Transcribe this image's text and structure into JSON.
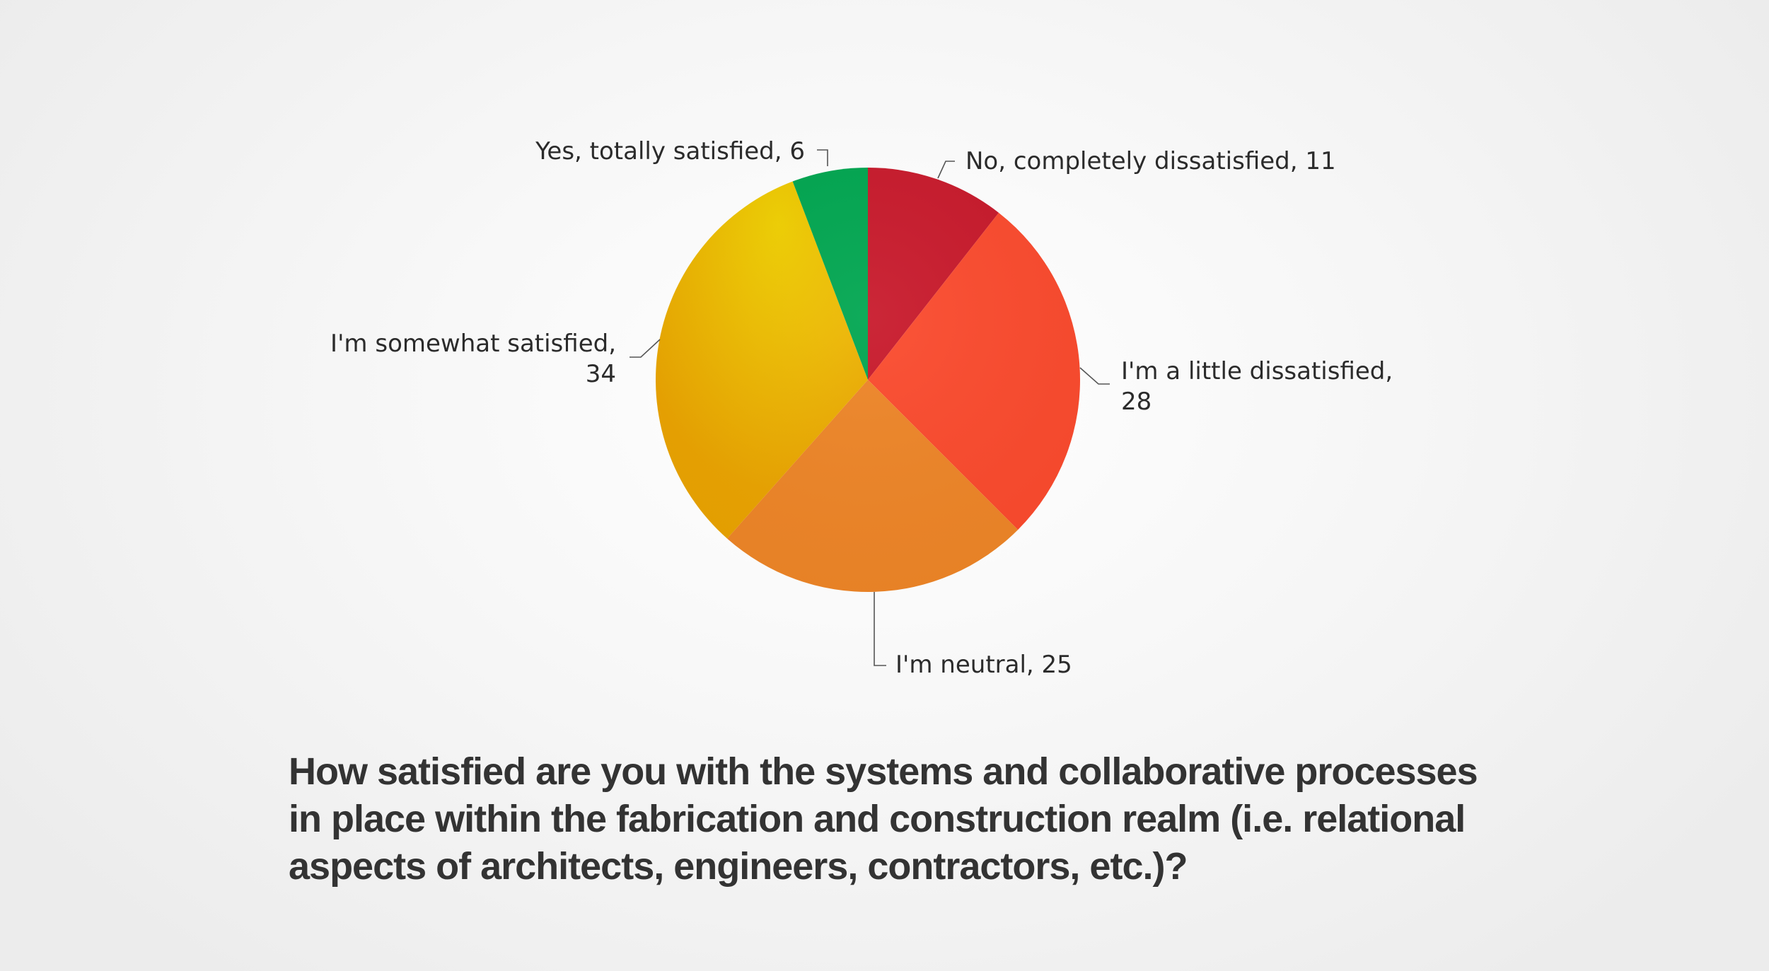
{
  "chart_data": {
    "type": "pie",
    "title": "How satisfied are you with the systems and collaborative processes in place within the fabrication and construction realm (i.e. relational aspects of architects, engineers, contractors, etc.)?",
    "slices": [
      {
        "label": "No, completely dissatisfied",
        "value": 11,
        "color": "#c8192b",
        "display": [
          "No, completely dissatisfied, 11"
        ]
      },
      {
        "label": "I'm a little dissatisfied",
        "value": 28,
        "color": "#fb4a2d",
        "display": [
          "I'm a little dissatisfied,",
          "28"
        ]
      },
      {
        "label": "I'm neutral",
        "value": 25,
        "color": "#ee8527",
        "display": [
          "I'm neutral, 25"
        ]
      },
      {
        "label": "I'm somewhat satisfied",
        "value": 34,
        "color": "#edb203",
        "display": [
          "I'm somewhat satisfied,",
          "34"
        ]
      },
      {
        "label": "Yes, totally satisfied",
        "value": 6,
        "color": "#00a650",
        "display": [
          "Yes, totally satisfied, 6"
        ]
      }
    ],
    "start_angle_deg": 0,
    "direction": "clockwise"
  }
}
